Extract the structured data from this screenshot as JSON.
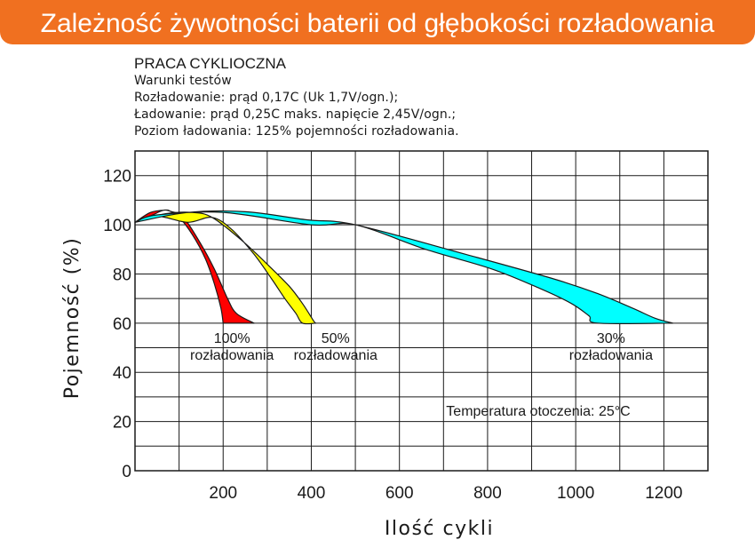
{
  "title": "Zależność żywotności baterii od głębokości rozładowania",
  "conditions": {
    "heading": "PRACA CYKLIOCZNA",
    "lines": [
      "Warunki testów",
      "Rozładowanie: prąd 0,17C (Uk 1,7V/ogn.);",
      "Ładowanie: prąd 0,25C maks. napięcie 2,45V/ogn.;",
      "Poziom ładowania: 125% pojemności rozładowania."
    ]
  },
  "chart_data": {
    "type": "area",
    "xlabel": "Ilość cykli",
    "ylabel": "Pojemność (%)",
    "xlim": [
      0,
      1300
    ],
    "ylim": [
      0,
      130
    ],
    "x_ticks": [
      "200",
      "400",
      "600",
      "800",
      "1000",
      "1200"
    ],
    "y_ticks": [
      "0",
      "20",
      "40",
      "60",
      "80",
      "100",
      "120"
    ],
    "grid": true,
    "annotation": "Temperatura otoczenia: 25°C",
    "series": [
      {
        "label": [
          "100%",
          "rozładowania"
        ],
        "color": "#ff0000",
        "upper": [
          [
            0,
            101
          ],
          [
            35,
            105
          ],
          [
            70,
            106
          ],
          [
            80,
            105.5
          ],
          [
            110,
            103
          ],
          [
            150,
            92
          ],
          [
            180,
            82
          ],
          [
            210,
            70
          ],
          [
            230,
            64
          ],
          [
            270,
            60
          ]
        ],
        "lower": [
          [
            0,
            101
          ],
          [
            40,
            104
          ],
          [
            70,
            106
          ],
          [
            100,
            103
          ],
          [
            130,
            96
          ],
          [
            160,
            86
          ],
          [
            180,
            76
          ],
          [
            195,
            66
          ],
          [
            200,
            60
          ]
        ]
      },
      {
        "label": [
          "50%",
          "rozładowania"
        ],
        "color": "#ffff00",
        "upper": [
          [
            0,
            101
          ],
          [
            70,
            104.5
          ],
          [
            130,
            105
          ],
          [
            175,
            103
          ],
          [
            240,
            94
          ],
          [
            300,
            84
          ],
          [
            350,
            75
          ],
          [
            380,
            68
          ],
          [
            405,
            61
          ],
          [
            410,
            60
          ]
        ],
        "lower": [
          [
            0,
            101
          ],
          [
            50,
            103.5
          ],
          [
            120,
            101
          ],
          [
            175,
            103
          ],
          [
            220,
            98
          ],
          [
            270,
            88
          ],
          [
            310,
            78
          ],
          [
            340,
            70
          ],
          [
            365,
            64
          ],
          [
            380,
            60
          ],
          [
            410,
            60
          ]
        ]
      },
      {
        "label": [
          "30%",
          "rozładowania"
        ],
        "color": "#00ffff",
        "upper": [
          [
            0,
            101
          ],
          [
            120,
            105
          ],
          [
            250,
            105.3
          ],
          [
            390,
            102
          ],
          [
            500,
            100
          ],
          [
            750,
            88
          ],
          [
            950,
            78
          ],
          [
            1050,
            72
          ],
          [
            1130,
            66
          ],
          [
            1180,
            62
          ],
          [
            1220,
            60
          ]
        ],
        "lower": [
          [
            0,
            101
          ],
          [
            50,
            104
          ],
          [
            200,
            105
          ],
          [
            400,
            100
          ],
          [
            500,
            100
          ],
          [
            660,
            90
          ],
          [
            810,
            82
          ],
          [
            920,
            74
          ],
          [
            990,
            68
          ],
          [
            1030,
            63
          ],
          [
            1050,
            60
          ],
          [
            1220,
            60
          ]
        ]
      }
    ]
  }
}
